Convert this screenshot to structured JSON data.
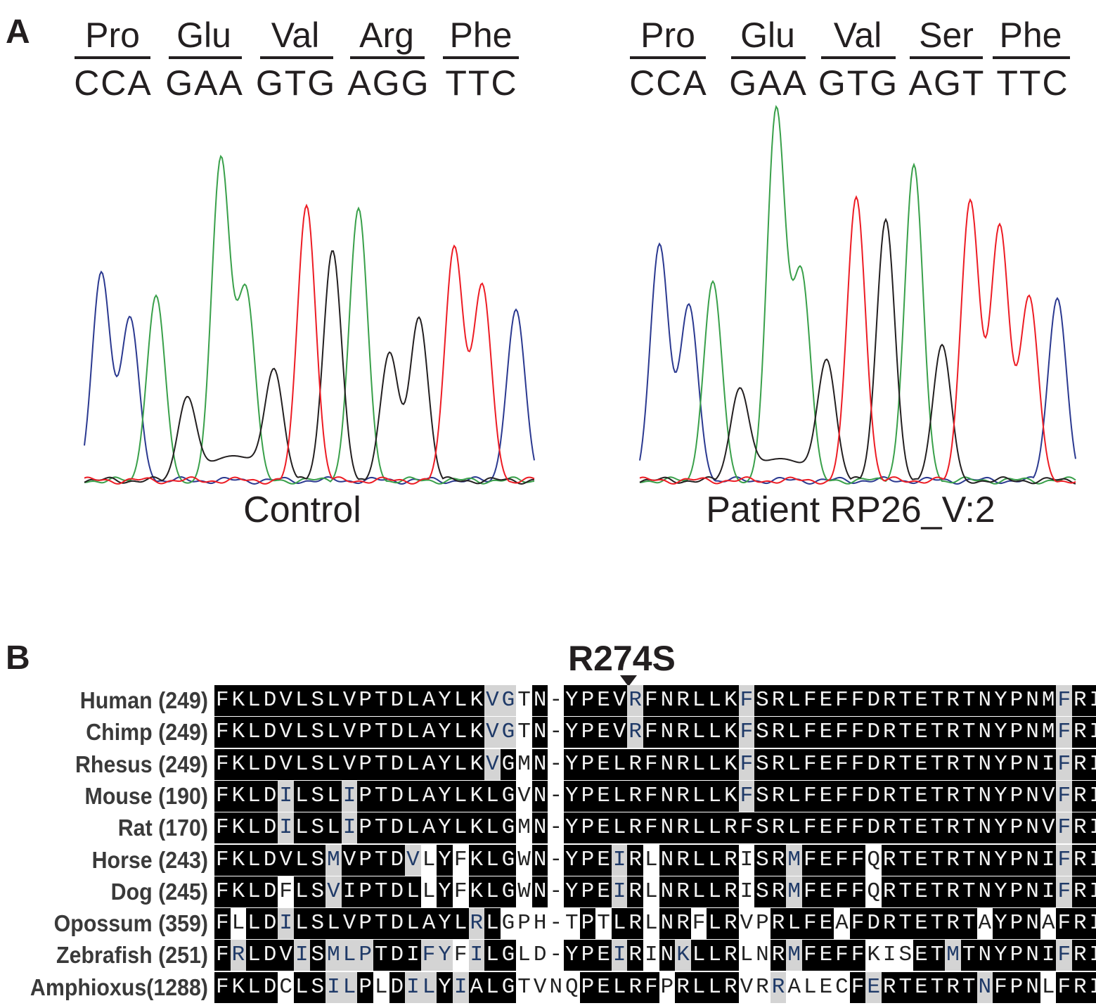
{
  "panel_a": {
    "label": "A",
    "control": {
      "amino_acids": [
        "Pro",
        "Glu",
        "Val",
        "Arg",
        "Phe"
      ],
      "codons": [
        "CCA",
        "GAA",
        "GTG",
        "AGG",
        "TTC"
      ],
      "caption": "Control"
    },
    "patient": {
      "amino_acids": [
        "Pro",
        "Glu",
        "Val",
        "Ser",
        "Phe"
      ],
      "codons": [
        "CCA",
        "GAA",
        "GTG",
        "AGT",
        "TTC"
      ],
      "caption": "Patient RP26_V:2"
    },
    "trace_colors": {
      "C": "#2b3990",
      "A": "#39a04a",
      "G": "#231f20",
      "T": "#ed1c24"
    }
  },
  "panel_b": {
    "label": "B",
    "mutation_label": "R274S",
    "alignment": [
      {
        "species": "Human (249)",
        "seq": "FKLDVLSLVPTDLAYLKVGTN-YPEVRFNRLLKFSRLFEFFDRTETRTNYPNMFRI",
        "shade": "kkkkkkkkkkkkkkkkkggwkgkkkkgkkkkkkgkkkkkkkkkkkkkkkkkkkgkkkk"
      },
      {
        "species": "Chimp (249)",
        "seq": "FKLDVLSLVPTDLAYLKVGTN-YPEVRFNRLLKFSRLFEFFDRTETRTNYPNMFRI",
        "shade": "kkkkkkkkkkkkkkkkkggwkgkkkkgkkkkkkgkkkkkkkkkkkkkkkkkkkgkkkk"
      },
      {
        "species": "Rhesus (249)",
        "seq": "FKLDVLSLVPTDLAYLKVGMN-YPELRFNRLLKFSRLFEFFDRTETRTNYPNIFRI",
        "shade": "kkkkkkkkkkkkkkkkkgkwkgkkkkkkkkkkkgkkkkkkkkkkkkkkkkkkkgkkkk"
      },
      {
        "species": "Mouse (190)",
        "seq": "FKLDILSLIPTDLAYLKLGVN-YPELRFNRLLKFSRLFEFFDRTETRTNYPNVFRI",
        "shade": "kkkkgkkkgkkkkkkkkkkwkgkkkkkkkkkkkgkkkkkkkkkkkkkkkkkkkgkkkk"
      },
      {
        "species": "Rat (170)",
        "seq": "FKLDILSLIPTDLAYLKLGMN-YPELRFNRLLRFSRLFEFFDRTETRTNYPNVFRI",
        "shade": "kkkkgkkkgkkkkkkkkkkwkgkkkkkkkkkkkkkkkkkkkkkkkkkkkkkkkgkkkk"
      },
      {
        "species": "Horse (243)",
        "seq": "FKLDVLSMVPTDVLYFKLGWN-YPEIRLNRLLRISRMFEFFQRTETRTNYPNIFRI",
        "shade": "kkkkkkkgkkkkgwkwkkkwkgkkkgkwkkkkkwkkgkkkkwkkkkkkkkkkkgkkkk"
      },
      {
        "species": "Dog (245)",
        "seq": "FKLDFLSVIPTDLLYFKLGWN-YPEIRLNRLLRISRMFEFFQRTETRTNYPNIFRI",
        "shade": "kkkkwkkgkkkkkwkwkkkwkgkkkgkwkkkkkwkkgkkkkwkkkkkkkkkkkgkkkk"
      },
      {
        "species": "Opossum (359)",
        "seq": "FLLDILSLVPTDLAYLRLGPH-TPTLRLNRFLRVPRLFEAFDRTETRTAYPNAFRI",
        "shade": "kwkkgkkkkkkkkkkkgkwwwgwkwkkwkkwkkwwkkkkwkkkkkkkkwkkkwkkkk"
      },
      {
        "species": "Zebrafish (251)",
        "seq": "FRLDVISMLPTDIFYFILGLD-YPEIRINKLLRLNRMFEFFKISETMTNYPNIFRI",
        "shade": "kgkkkgkgggkkkggwgkkwwgkkkgkwkgkkkwwkgkkkkwwwkkgkkkkkkgkkkk"
      },
      {
        "species": "Amphioxus(1288)",
        "seq": "FKLDCLSILPLDILYIALGTVNQPELRFPRLLRVRRALECFERTETRTNFPNLFRI",
        "shade": "kkkkwkkggkwkggkgkkkwwwwkkkkkwkkkkwwgwwwwkgkkkkkkgkkkwkkkk"
      }
    ]
  }
}
